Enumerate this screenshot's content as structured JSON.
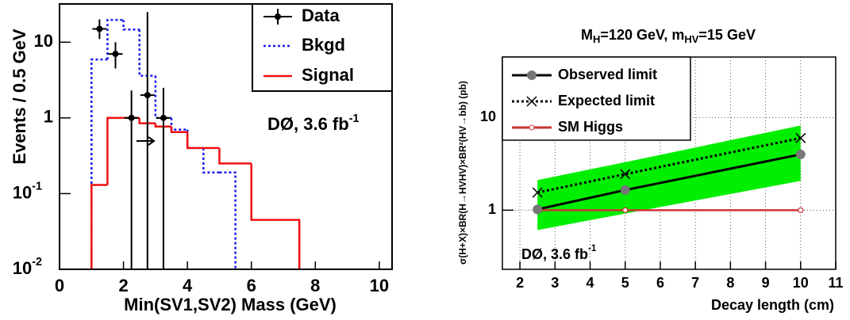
{
  "chart_data": [
    {
      "type": "histogram",
      "xlabel": "Min(SV1,SV2) Mass (GeV)",
      "ylabel": "Events / 0.5 GeV",
      "xlim": [
        0,
        10.4
      ],
      "xticks": [
        0,
        2,
        4,
        6,
        8,
        10
      ],
      "ylim": [
        0.01,
        32
      ],
      "log_y": true,
      "yticks": [
        {
          "value": 0.01,
          "label": "10",
          "exponent": "-2"
        },
        {
          "value": 0.1,
          "label": "10",
          "exponent": "-1"
        },
        1,
        10
      ],
      "points": {
        "name": "Data",
        "color": "#000000",
        "x": [
          1.25,
          1.75,
          2.25,
          2.75,
          3.25
        ],
        "values": [
          15,
          7,
          1,
          2,
          1
        ],
        "err_low": [
          11,
          4.5,
          0.01,
          0.01,
          0.01
        ],
        "err_high": [
          20,
          10,
          2.3,
          25,
          2.5
        ]
      },
      "series": [
        {
          "name": "Bkgd",
          "color": "#1a1aee",
          "style": "dotted",
          "bins": [
            1,
            1.5,
            2,
            2.5,
            3,
            3.5,
            4,
            4.5,
            5,
            5.5
          ],
          "values": [
            5.9,
            19.7,
            14.7,
            3.6,
            1.0,
            0.7,
            0.4,
            0.19,
            0.19
          ]
        },
        {
          "name": "Signal",
          "color": "#ee1111",
          "style": "solid",
          "bins": [
            1,
            1.5,
            2,
            2.5,
            3,
            3.5,
            4,
            4.5,
            5,
            5.5,
            6,
            6.5,
            7,
            7.5
          ],
          "values": [
            0.13,
            1.0,
            1.0,
            0.85,
            0.77,
            0.65,
            0.4,
            0.4,
            0.25,
            0.25,
            0.045,
            0.045,
            0.045
          ]
        }
      ],
      "annotation": {
        "text": "DØ, 3.6 fb",
        "superscript": "-1"
      },
      "legend": "upper right"
    },
    {
      "type": "line",
      "title": {
        "parts": [
          "M",
          "H",
          "=120 GeV, m",
          "HV",
          "=15 GeV"
        ]
      },
      "xlabel": "Decay length (cm)",
      "ylabel": "σ(H+X)×BR(H→HVHV)×BR²(HV→bb) (pb)",
      "xlim": [
        1.5,
        11
      ],
      "xticks": [
        2,
        3,
        4,
        5,
        6,
        7,
        8,
        9,
        10,
        11
      ],
      "ylim": [
        0.23,
        45
      ],
      "log_y": true,
      "yticks": [
        1,
        10
      ],
      "grid": true,
      "x": [
        2.5,
        5,
        10
      ],
      "band": {
        "color": "#00ee00",
        "lower": [
          0.61,
          0.92,
          2.07
        ],
        "upper": [
          2.11,
          3.3,
          8.2
        ]
      },
      "series": [
        {
          "name": "Observed limit",
          "color": "#000000",
          "style": "solid",
          "marker": "circle",
          "values": [
            1.02,
            1.65,
            4.0
          ]
        },
        {
          "name": "Expected limit",
          "color": "#000000",
          "style": "dotted",
          "marker": "cross",
          "values": [
            1.55,
            2.45,
            6.0
          ]
        },
        {
          "name": "SM Higgs",
          "color": "#cc3333",
          "style": "solid",
          "marker": "small-circle",
          "values": [
            1,
            1,
            1
          ]
        }
      ],
      "annotation": {
        "text": "DØ, 3.6 fb",
        "superscript": "-1"
      },
      "legend": "upper left"
    }
  ]
}
